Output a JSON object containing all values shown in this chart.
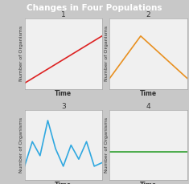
{
  "title": "Changes in Four Populations",
  "title_bg": "#9b3faa",
  "title_color": "#ffffff",
  "outer_bg": "#c8c8c8",
  "plot_bg": "#f0f0f0",
  "grid_color": "#cccccc",
  "subplot_labels": [
    "1",
    "2",
    "3",
    "4"
  ],
  "xlabel": "Time",
  "ylabel": "Number of Organisms",
  "lines": [
    {
      "x": [
        0,
        10
      ],
      "y": [
        0.8,
        7.5
      ],
      "color": "#dd2222",
      "linewidth": 1.2
    },
    {
      "x": [
        0,
        4,
        10
      ],
      "y": [
        1.5,
        7.5,
        1.5
      ],
      "color": "#e89020",
      "linewidth": 1.2
    },
    {
      "x": [
        0,
        1,
        2,
        3,
        4,
        5,
        6,
        7,
        8,
        9,
        10
      ],
      "y": [
        2.0,
        5.5,
        3.5,
        8.5,
        4.5,
        2.0,
        5.0,
        3.0,
        5.5,
        2.0,
        2.5
      ],
      "color": "#30a8e0",
      "linewidth": 1.2
    },
    {
      "x": [
        0,
        10
      ],
      "y": [
        4.0,
        4.0
      ],
      "color": "#30a030",
      "linewidth": 1.2
    }
  ]
}
